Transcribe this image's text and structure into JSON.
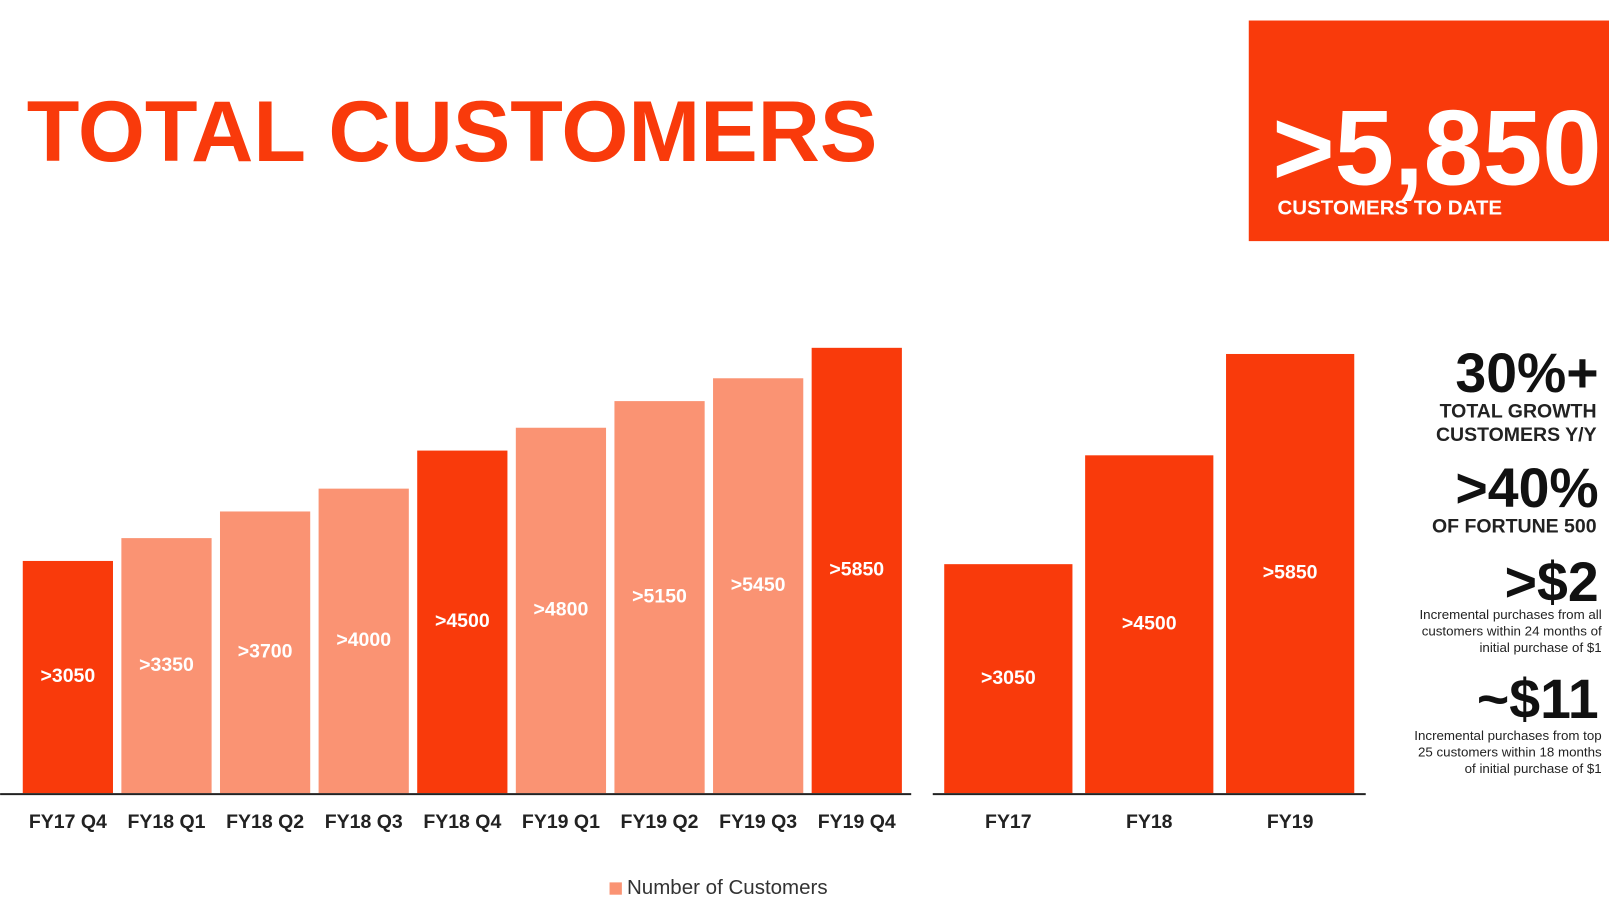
{
  "header": {
    "title": "TOTAL CUSTOMERS"
  },
  "highlight": {
    "value": ">5,850",
    "label": "CUSTOMERS TO DATE"
  },
  "stats": [
    {
      "value": "30%+",
      "lines": [
        "TOTAL GROWTH",
        "CUSTOMERS Y/Y"
      ]
    },
    {
      "value": ">40%",
      "lines": [
        "OF FORTUNE 500"
      ]
    },
    {
      "value": ">$2",
      "lines": [
        "Incremental purchases from all",
        "customers within 24 months of",
        "initial purchase of $1"
      ]
    },
    {
      "value": "~$11",
      "lines": [
        "Incremental purchases from top",
        "25 customers within 18 months",
        "of initial purchase of $1"
      ]
    }
  ],
  "chart_data": [
    {
      "type": "bar",
      "categories": [
        "FY17 Q4",
        "FY18 Q1",
        "FY18 Q2",
        "FY18 Q3",
        "FY18 Q4",
        "FY19 Q1",
        "FY19 Q2",
        "FY19 Q3",
        "FY19 Q4"
      ],
      "series": [
        {
          "name": "Number of Customers",
          "color": "#fa9373",
          "colors": [
            "#f93a0b",
            "#fa9373",
            "#fa9373",
            "#fa9373",
            "#f93a0b",
            "#fa9373",
            "#fa9373",
            "#fa9373",
            "#f93a0b"
          ],
          "values": [
            3050,
            3350,
            3700,
            4000,
            4500,
            4800,
            5150,
            5450,
            5850
          ],
          "value_labels": [
            ">3050",
            ">3350",
            ">3700",
            ">4000",
            ">4500",
            ">4800",
            ">5150",
            ">5450",
            ">5850"
          ]
        }
      ],
      "legend": "bottom"
    },
    {
      "type": "bar",
      "categories": [
        "FY17",
        "FY18",
        "FY19"
      ],
      "color": "#f93a0b",
      "values": [
        3050,
        4500,
        5850
      ],
      "value_labels": [
        ">3050",
        ">4500",
        ">5850"
      ]
    }
  ]
}
